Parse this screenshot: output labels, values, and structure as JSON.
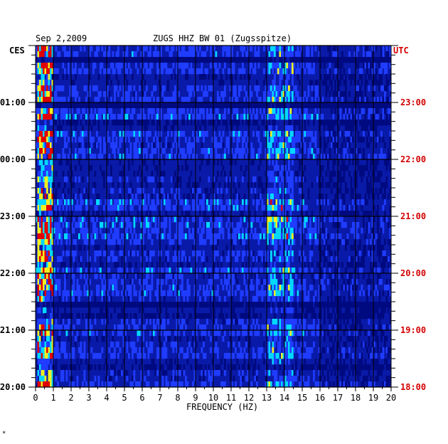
{
  "header": {
    "date": "Sep 2,2009",
    "station": "ZUGS HHZ BW 01 (Zugsspitze)"
  },
  "axis_labels": {
    "left_tz": "CES",
    "right_tz": "UTC",
    "x_title": "FREQUENCY (HZ)"
  },
  "footer_mark": "*",
  "colors": {
    "background_blue": "#0a1aa8",
    "dark_blue": "#000a80",
    "mid_blue": "#1f3cff",
    "cyan": "#00d8ff",
    "yellow": "#f0f020",
    "red": "#e00000",
    "grid": "#000000",
    "utc_label": "#d40000"
  },
  "chart_data": {
    "type": "heatmap",
    "xlabel": "FREQUENCY (HZ)",
    "xlim": [
      0,
      20
    ],
    "x_ticks": [
      "0",
      "1",
      "2",
      "3",
      "4",
      "5",
      "6",
      "7",
      "8",
      "9",
      "10",
      "11",
      "12",
      "13",
      "14",
      "15",
      "16",
      "17",
      "18",
      "19",
      "20"
    ],
    "left_time_ticks": [
      "01:00",
      "00:00",
      "23:00",
      "22:00",
      "21:00",
      "20:00"
    ],
    "right_time_ticks": [
      "23:00",
      "22:00",
      "21:00",
      "20:00",
      "19:00",
      "18:00"
    ],
    "hours_shown": 6,
    "colormap": [
      "#000a80",
      "#0a1aa8",
      "#1f3cff",
      "#00d8ff",
      "#f0f020",
      "#e00000"
    ],
    "features": [
      {
        "name": "low-frequency energy band",
        "freq_range_hz": [
          0.1,
          1.0
        ],
        "level": "high"
      },
      {
        "name": "tremor band",
        "freq_range_hz": [
          13.0,
          14.5
        ],
        "level": "medium"
      }
    ]
  }
}
